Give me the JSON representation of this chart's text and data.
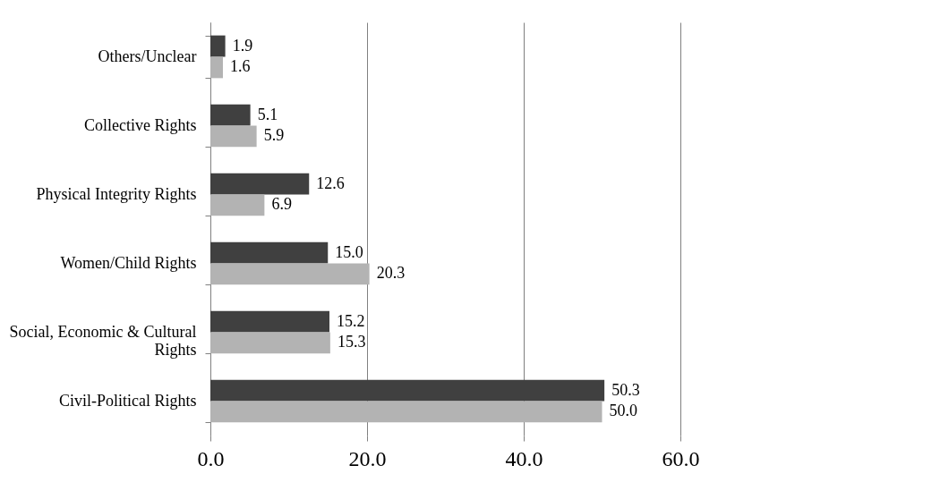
{
  "chart_data": {
    "type": "bar",
    "orientation": "horizontal",
    "categories": [
      "Others/Unclear",
      "Collective Rights",
      "Physical Integrity Rights",
      "Women/Child Rights",
      "Social, Economic & Cultural Rights",
      "Civil-Political Rights"
    ],
    "series": [
      {
        "color": "#404040",
        "values": [
          1.9,
          5.1,
          12.6,
          15.0,
          15.2,
          50.3
        ],
        "value_labels": [
          "1.9",
          "5.1",
          "12.6",
          "15.0",
          "15.2",
          "50.3"
        ]
      },
      {
        "color": "#b3b3b3",
        "values": [
          1.6,
          5.9,
          6.9,
          20.3,
          15.3,
          50.0
        ],
        "value_labels": [
          "1.6",
          "5.9",
          "6.9",
          "20.3",
          "15.3",
          "50.0"
        ]
      }
    ],
    "xlim": [
      0,
      60
    ],
    "xticks": [
      {
        "value": 0,
        "label": "0.0"
      },
      {
        "value": 20,
        "label": "20.0"
      },
      {
        "value": 40,
        "label": "40.0"
      },
      {
        "value": 60,
        "label": "60.0"
      }
    ],
    "grid": "x",
    "legend": false
  }
}
